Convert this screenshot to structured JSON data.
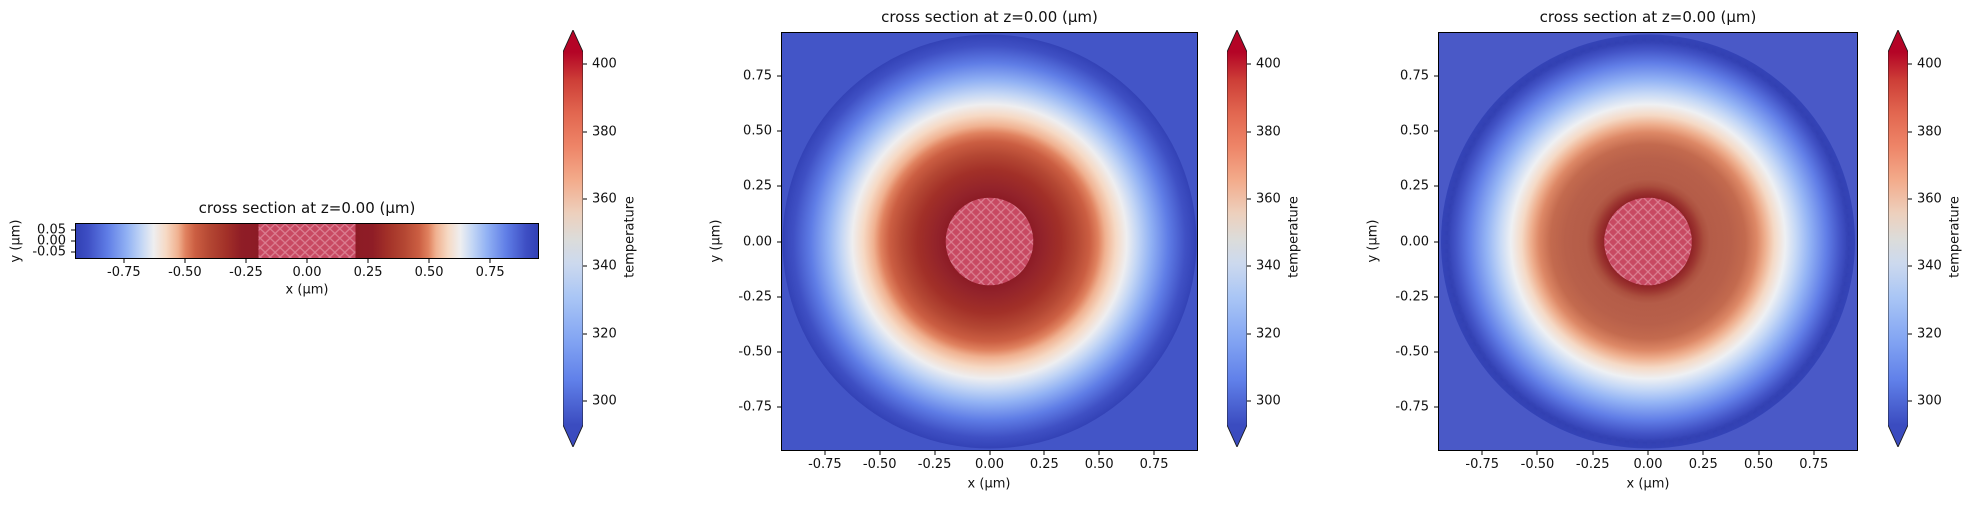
{
  "plots": [
    {
      "title": "cross section at z=0.00 (μm)",
      "xlabel": "x (μm)",
      "ylabel": "y (μm)",
      "x_ticks": [
        "-0.75",
        "-0.50",
        "-0.25",
        "0.00",
        "0.25",
        "0.50",
        "0.75"
      ],
      "y_ticks": [
        "0.05",
        "0.00",
        "-0.05"
      ]
    },
    {
      "title": "cross section at z=0.00 (μm)",
      "xlabel": "x (μm)",
      "ylabel": "y (μm)",
      "x_ticks": [
        "-0.75",
        "-0.50",
        "-0.25",
        "0.00",
        "0.25",
        "0.50",
        "0.75"
      ],
      "y_ticks": [
        "0.75",
        "0.50",
        "0.25",
        "0.00",
        "-0.25",
        "-0.50",
        "-0.75"
      ]
    },
    {
      "title": "cross section at z=0.00 (μm)",
      "xlabel": "x (μm)",
      "ylabel": "y (μm)",
      "x_ticks": [
        "-0.75",
        "-0.50",
        "-0.25",
        "0.00",
        "0.25",
        "0.50",
        "0.75"
      ],
      "y_ticks": [
        "0.75",
        "0.50",
        "0.25",
        "0.00",
        "-0.25",
        "-0.50",
        "-0.75"
      ]
    }
  ],
  "colorbars": [
    {
      "label": "temperature",
      "ticks": [
        "400",
        "380",
        "360",
        "340",
        "320",
        "300"
      ]
    },
    {
      "label": "temperature",
      "ticks": [
        "400",
        "380",
        "360",
        "340",
        "320",
        "300"
      ]
    },
    {
      "label": "temperature",
      "ticks": [
        "400",
        "380",
        "360",
        "340",
        "320",
        "300"
      ]
    }
  ],
  "chart_data": {
    "type": "heatmap",
    "layout": "1x3 subplots, each with its own colorbar",
    "colormap": "coolwarm",
    "colorbar": {
      "label": "temperature",
      "ticks": [
        300,
        320,
        340,
        360,
        380,
        400
      ],
      "vmin": 293,
      "vmax": 403.6,
      "extend": "both"
    },
    "subplots": [
      {
        "title": "cross section at z=0.00 (μm)",
        "xlabel": "x (μm)",
        "ylabel": "y (μm)",
        "xlim": [
          -0.95,
          0.95
        ],
        "ylim": [
          -0.085,
          0.085
        ],
        "xticks": [
          -0.75,
          -0.5,
          -0.25,
          0.0,
          0.25,
          0.5,
          0.75
        ],
        "yticks": [
          0.05,
          0.0,
          -0.05
        ],
        "description": "thin horizontal strip cross-section of radially symmetric temperature field; hatched masked core for |x|<0.2"
      },
      {
        "title": "cross section at z=0.00 (μm)",
        "xlabel": "x (μm)",
        "ylabel": "y (μm)",
        "xlim": [
          -0.95,
          0.95
        ],
        "ylim": [
          -0.95,
          0.95
        ],
        "xticks": [
          -0.75,
          -0.5,
          -0.25,
          0.0,
          0.25,
          0.5,
          0.75
        ],
        "yticks": [
          0.75,
          0.5,
          0.25,
          0.0,
          -0.25,
          -0.5,
          -0.75
        ],
        "description": "smooth fine-grid circular temperature field with hatched masked disk of radius 0.2 at center; uniform cool region outside radius 0.95"
      },
      {
        "title": "cross section at z=0.00 (μm)",
        "xlabel": "x (μm)",
        "ylabel": "y (μm)",
        "xlim": [
          -0.95,
          0.95
        ],
        "ylim": [
          -0.95,
          0.95
        ],
        "xticks": [
          -0.75,
          -0.5,
          -0.25,
          0.0,
          0.25,
          0.5,
          0.75
        ],
        "yticks": [
          0.75,
          0.5,
          0.25,
          0.0,
          -0.25,
          -0.5,
          -0.75
        ],
        "description": "coarse-grid (blocky/stair-stepped contours) circular temperature field, interior more muted terracotta; hatched masked disk of radius 0.2 at center"
      }
    ],
    "field": {
      "symmetry": "radial",
      "hatched_core_radius_um": 0.2,
      "outer_radius_um": 0.95,
      "radial_profile": {
        "r_um": [
          0.2,
          0.25,
          0.3,
          0.4,
          0.5,
          0.6,
          0.63,
          0.7,
          0.8,
          0.9,
          0.95
        ],
        "temperature": [
          400,
          399,
          396,
          384,
          368,
          352,
          348,
          334,
          317,
          303,
          295
        ]
      }
    }
  }
}
